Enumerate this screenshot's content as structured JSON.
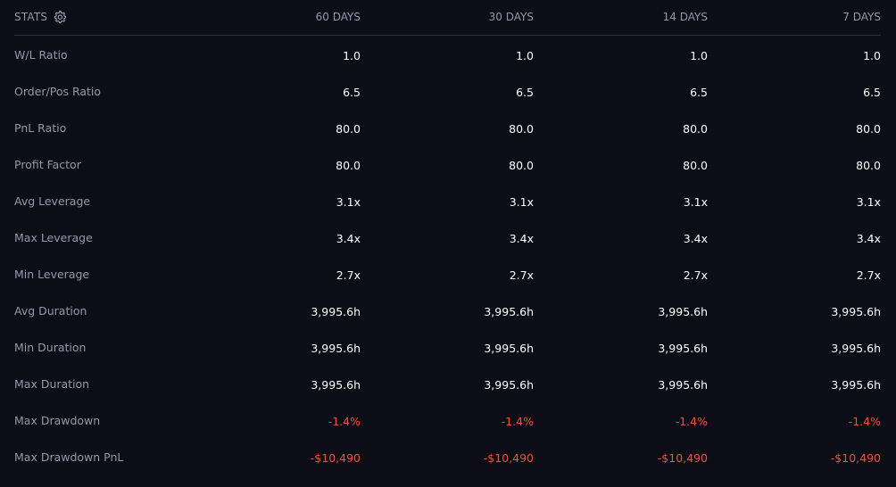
{
  "header": {
    "title": "STATS",
    "gear_icon": "gear-icon",
    "periods": [
      "60 DAYS",
      "30 DAYS",
      "14 DAYS",
      "7 DAYS"
    ]
  },
  "colors": {
    "background": "#0c0d16",
    "label": "#9398ad",
    "value": "#ffffff",
    "negative": "#f0503c",
    "divider": "#2c3148"
  },
  "rows": [
    {
      "label": "W/L Ratio",
      "values": [
        "1.0",
        "1.0",
        "1.0",
        "1.0"
      ],
      "negative": false
    },
    {
      "label": "Order/Pos Ratio",
      "values": [
        "6.5",
        "6.5",
        "6.5",
        "6.5"
      ],
      "negative": false
    },
    {
      "label": "PnL Ratio",
      "values": [
        "80.0",
        "80.0",
        "80.0",
        "80.0"
      ],
      "negative": false
    },
    {
      "label": "Profit Factor",
      "values": [
        "80.0",
        "80.0",
        "80.0",
        "80.0"
      ],
      "negative": false
    },
    {
      "label": "Avg Leverage",
      "values": [
        "3.1x",
        "3.1x",
        "3.1x",
        "3.1x"
      ],
      "negative": false
    },
    {
      "label": "Max Leverage",
      "values": [
        "3.4x",
        "3.4x",
        "3.4x",
        "3.4x"
      ],
      "negative": false
    },
    {
      "label": "Min Leverage",
      "values": [
        "2.7x",
        "2.7x",
        "2.7x",
        "2.7x"
      ],
      "negative": false
    },
    {
      "label": "Avg Duration",
      "values": [
        "3,995.6h",
        "3,995.6h",
        "3,995.6h",
        "3,995.6h"
      ],
      "negative": false
    },
    {
      "label": "Min Duration",
      "values": [
        "3,995.6h",
        "3,995.6h",
        "3,995.6h",
        "3,995.6h"
      ],
      "negative": false
    },
    {
      "label": "Max Duration",
      "values": [
        "3,995.6h",
        "3,995.6h",
        "3,995.6h",
        "3,995.6h"
      ],
      "negative": false
    },
    {
      "label": "Max Drawdown",
      "values": [
        "-1.4%",
        "-1.4%",
        "-1.4%",
        "-1.4%"
      ],
      "negative": true
    },
    {
      "label": "Max Drawdown PnL",
      "values": [
        "-$10,490",
        "-$10,490",
        "-$10,490",
        "-$10,490"
      ],
      "negative": true
    }
  ]
}
